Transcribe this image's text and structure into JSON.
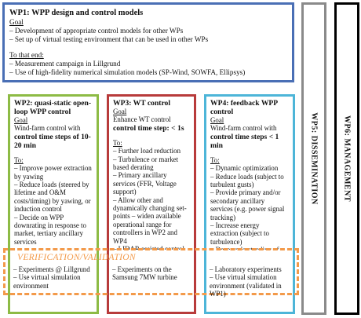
{
  "wp1": {
    "title": "WP1: WPP design and control models",
    "goal_label": "Goal",
    "goal_items": [
      "– Development of appropriate control models for other WPs",
      "– Set up of virtual testing environment that can be used in other WPs"
    ],
    "to_label": "To that end:",
    "to_items": [
      "– Measurement campaign in Lillgrund",
      "– Use of high-fidelity numerical simulation models (SP-Wind, SOWFA, Ellipsys)"
    ]
  },
  "wp2": {
    "title": "WP2: quasi-static open-loop WPP control",
    "goal_label": "Goal",
    "goal_text": "Wind-farm control with",
    "goal_bold": "control time steps of 10-20 min",
    "to_label": "To:",
    "to_items": [
      "– Improve power extraction by yawing",
      "– Reduce loads (steered by lifetime and O&M costs/timing) by yawing, or induction control",
      "– Decide on WPP downrating in response to market, tertiary ancillary services",
      "– …"
    ]
  },
  "wp3": {
    "title": "WP3: WT control",
    "goal_label": "Goal",
    "goal_text": "Enhance WT control",
    "goal_bold": "control time step: < 1s",
    "to_label": "To:",
    "to_items": [
      "– Further load reduction",
      "– Turbulence or market based derating",
      "– Primary ancillary services (FFR, Voltage support)",
      "– Allow other and dynamically changing set-points – widen available operational range for controllers in WP2 and WP4",
      "– LIDAR assisted control",
      "– …."
    ]
  },
  "wp4": {
    "title": "WP4: feedback WPP control",
    "goal_label": "Goal",
    "goal_text": "Wind-farm control with",
    "goal_bold": "control time steps < 1 min",
    "to_label": "To:",
    "to_items": [
      "– Dynamic optimization",
      "– Reduce loads (subject to turbulent gusts)",
      "– Provide primary and/or secondary ancillary services (e.g. power signal tracking)",
      "– Increase energy extraction (subject to turbulence)",
      "– Deep understanding of WPP system dynamics"
    ]
  },
  "verification": {
    "label": "VERIFICATION/VALIDATION",
    "wp2_text": "– Experiments @ Lillgrund\n– Use virtual simulation environment",
    "wp3_text": "– Experiments on the Samsung 7MW turbine",
    "wp4_text": "– Laboratory experiments\n– Use virtual simulation environment (validated in WP1)"
  },
  "wp5": {
    "label": "WP5: DISSEMINATION"
  },
  "wp6": {
    "label": "WP6: MANAGEMENT"
  },
  "colors": {
    "wp1": "#4a6fb5",
    "wp2": "#8dbb45",
    "wp3": "#b83b3b",
    "wp4": "#4db5d8",
    "verification": "#f39a4a",
    "wp5": "#8a8a8a",
    "wp6": "#000000"
  }
}
